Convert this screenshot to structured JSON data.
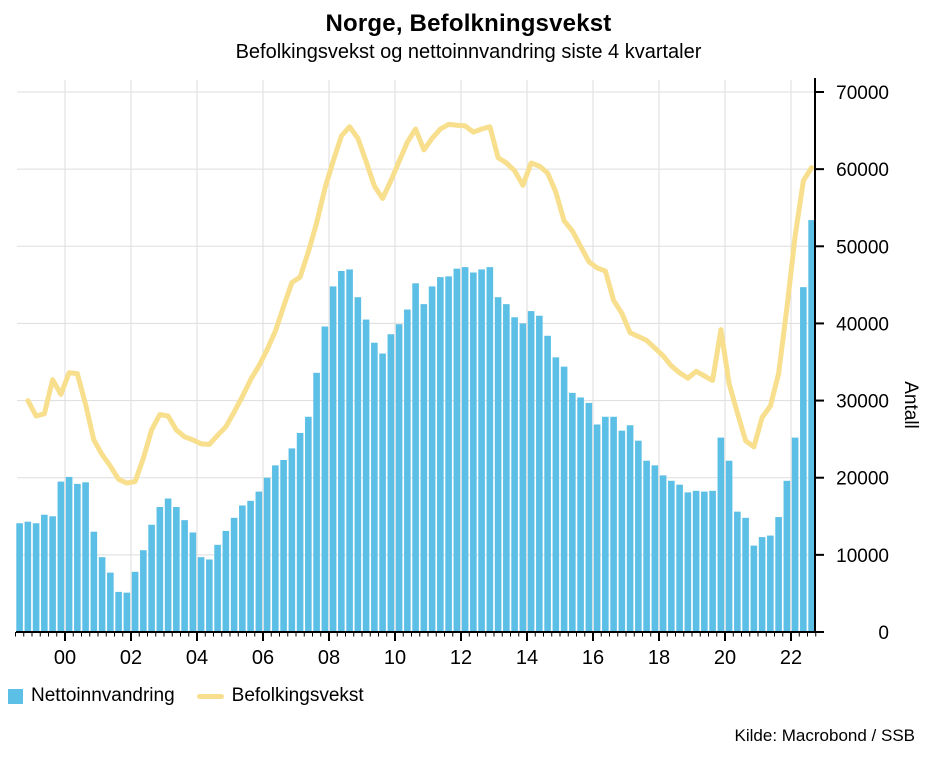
{
  "header": {
    "title": "Norge, Befolkningsvekst",
    "subtitle": "Befolkingsvekst og nettoinnvandring siste 4 kvartaler"
  },
  "legend": {
    "items": [
      {
        "label": "Nettoinnvandring",
        "swatch": "square",
        "color": "#5CBFE5"
      },
      {
        "label": "Befolkingsvekst",
        "swatch": "line",
        "color": "#F7DF8E"
      }
    ]
  },
  "source": "Kilde: Macrobond / SSB",
  "colors": {
    "bar": "#5CBFE5",
    "line": "#F7DF8E",
    "grid": "#DDDDDD",
    "axis": "#000000"
  },
  "chart_data": {
    "type": "bar+line",
    "title": "Norge, Befolkningsvekst",
    "subtitle": "Befolkingsvekst og nettoinnvandring siste 4 kvartaler",
    "ylabel": "Antall",
    "ylim": [
      0,
      70000
    ],
    "y_ticks": [
      0,
      10000,
      20000,
      30000,
      40000,
      50000,
      60000,
      70000
    ],
    "y_ticklabels": [
      "0",
      "10000",
      "20000",
      "30000",
      "40000",
      "50000",
      "60000",
      "70000"
    ],
    "x_tick_years": [
      2000,
      2002,
      2004,
      2006,
      2008,
      2010,
      2012,
      2014,
      2016,
      2018,
      2020,
      2022
    ],
    "x_ticklabels": [
      "00",
      "02",
      "04",
      "06",
      "08",
      "10",
      "12",
      "14",
      "16",
      "18",
      "20",
      "22"
    ],
    "grid": true,
    "legend_position": "bottom-left",
    "quarters": [
      "1999Q1",
      "1999Q2",
      "1999Q3",
      "1999Q4",
      "2000Q1",
      "2000Q2",
      "2000Q3",
      "2000Q4",
      "2001Q1",
      "2001Q2",
      "2001Q3",
      "2001Q4",
      "2002Q1",
      "2002Q2",
      "2002Q3",
      "2002Q4",
      "2003Q1",
      "2003Q2",
      "2003Q3",
      "2003Q4",
      "2004Q1",
      "2004Q2",
      "2004Q3",
      "2004Q4",
      "2005Q1",
      "2005Q2",
      "2005Q3",
      "2005Q4",
      "2006Q1",
      "2006Q2",
      "2006Q3",
      "2006Q4",
      "2007Q1",
      "2007Q2",
      "2007Q3",
      "2007Q4",
      "2008Q1",
      "2008Q2",
      "2008Q3",
      "2008Q4",
      "2009Q1",
      "2009Q2",
      "2009Q3",
      "2009Q4",
      "2010Q1",
      "2010Q2",
      "2010Q3",
      "2010Q4",
      "2011Q1",
      "2011Q2",
      "2011Q3",
      "2011Q4",
      "2012Q1",
      "2012Q2",
      "2012Q3",
      "2012Q4",
      "2013Q1",
      "2013Q2",
      "2013Q3",
      "2013Q4",
      "2014Q1",
      "2014Q2",
      "2014Q3",
      "2014Q4",
      "2015Q1",
      "2015Q2",
      "2015Q3",
      "2015Q4",
      "2016Q1",
      "2016Q2",
      "2016Q3",
      "2016Q4",
      "2017Q1",
      "2017Q2",
      "2017Q3",
      "2017Q4",
      "2018Q1",
      "2018Q2",
      "2018Q3",
      "2018Q4",
      "2019Q1",
      "2019Q2",
      "2019Q3",
      "2019Q4",
      "2020Q1",
      "2020Q2",
      "2020Q3",
      "2020Q4",
      "2021Q1",
      "2021Q2",
      "2021Q3",
      "2021Q4",
      "2022Q1",
      "2022Q2",
      "2022Q3",
      "2022Q4",
      "2023Q1"
    ],
    "series": [
      {
        "name": "Nettoinnvandring",
        "type": "bar",
        "color": "#5CBFE5",
        "values": [
          14100,
          14300,
          14100,
          15200,
          15000,
          19500,
          20100,
          19200,
          19400,
          13000,
          9700,
          7700,
          5200,
          5100,
          7800,
          10600,
          13900,
          16200,
          17300,
          16200,
          14500,
          12900,
          9700,
          9400,
          11300,
          13100,
          14800,
          16400,
          17000,
          18200,
          20000,
          21600,
          22300,
          23800,
          25800,
          27900,
          33600,
          39600,
          44800,
          46800,
          47000,
          43400,
          40500,
          37500,
          36100,
          38600,
          39900,
          41800,
          45200,
          42500,
          44800,
          46000,
          46100,
          47100,
          47300,
          46600,
          47000,
          47300,
          43400,
          42500,
          40800,
          40000,
          41600,
          41000,
          38400,
          35600,
          34400,
          31000,
          30400,
          29700,
          26900,
          27900,
          27900,
          26100,
          26800,
          24800,
          22200,
          21600,
          20300,
          19600,
          19100,
          18100,
          18300,
          18200,
          18300,
          25200,
          22200,
          15600,
          14800,
          11200,
          12300,
          12500,
          14900,
          19600,
          25200,
          44700,
          53400
        ]
      },
      {
        "name": "Befolkingsvekst",
        "type": "line",
        "color": "#F7DF8E",
        "values": [
          null,
          30000,
          28000,
          28300,
          32700,
          30800,
          33600,
          33500,
          29500,
          24900,
          23000,
          21500,
          19800,
          19300,
          19500,
          22500,
          26200,
          28200,
          28000,
          26200,
          25300,
          24900,
          24400,
          24300,
          25500,
          26600,
          28500,
          30500,
          32700,
          34500,
          36600,
          39000,
          42200,
          45300,
          46000,
          49300,
          53000,
          57500,
          61000,
          64300,
          65500,
          64000,
          61000,
          57800,
          56200,
          58500,
          61000,
          63500,
          65200,
          62500,
          64000,
          65200,
          65800,
          65700,
          65600,
          64800,
          65200,
          65500,
          61500,
          60800,
          59800,
          57900,
          60800,
          60400,
          59500,
          57000,
          53300,
          52000,
          50000,
          48000,
          47200,
          46800,
          43000,
          41300,
          38800,
          38300,
          37800,
          36800,
          35800,
          34500,
          33600,
          32900,
          33800,
          33200,
          32600,
          39200,
          32200,
          28400,
          24800,
          24000,
          27800,
          29300,
          33500,
          42000,
          51300,
          58500,
          60200
        ]
      }
    ]
  }
}
